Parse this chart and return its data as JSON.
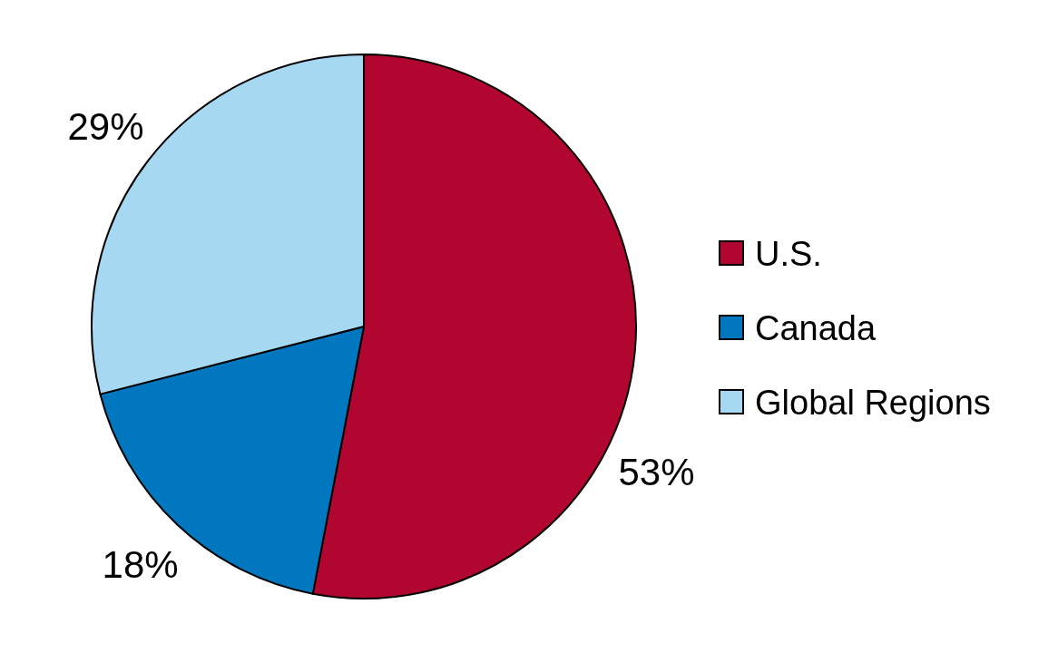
{
  "chart_data": {
    "type": "pie",
    "categories": [
      "U.S.",
      "Canada",
      "Global Regions"
    ],
    "values": [
      53,
      18,
      29
    ],
    "colors": [
      "#b0062f",
      "#0077bf",
      "#a7d8f2"
    ],
    "value_labels": [
      "53%",
      "18%",
      "29%"
    ],
    "legend": "right"
  }
}
